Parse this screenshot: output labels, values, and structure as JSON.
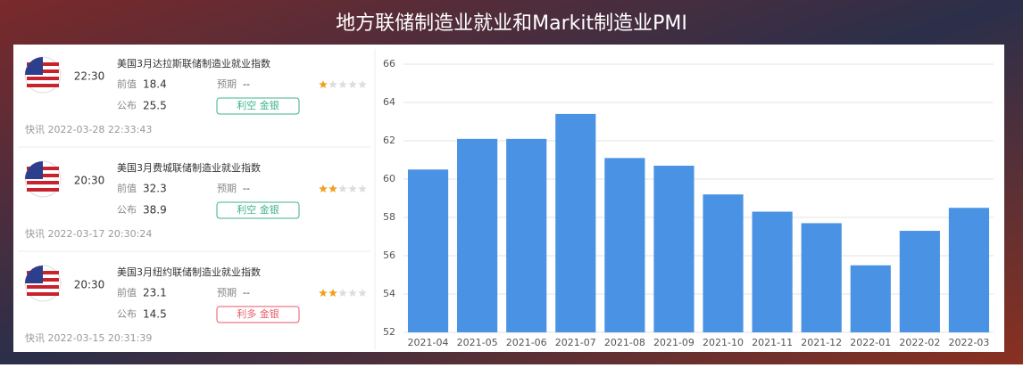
{
  "title": "地方联储制造业就业和Markit制造业PMI",
  "labels": {
    "prev": "前值",
    "forecast": "预期",
    "actual": "公布"
  },
  "news": [
    {
      "time": "22:30",
      "name": "美国3月达拉斯联储制造业就业指数",
      "prev": "18.4",
      "forecast": "--",
      "actual": "25.5",
      "stars": 1,
      "tag": "利空 金银",
      "tag_color": "#3cb38a",
      "footer": "快讯 2022-03-28 22:33:43"
    },
    {
      "time": "20:30",
      "name": "美国3月费城联储制造业就业指数",
      "prev": "32.3",
      "forecast": "--",
      "actual": "38.9",
      "stars": 2,
      "tag": "利空 金银",
      "tag_color": "#3cb38a",
      "footer": "快讯 2022-03-17 20:30:24"
    },
    {
      "time": "20:30",
      "name": "美国3月纽约联储制造业就业指数",
      "prev": "23.1",
      "forecast": "--",
      "actual": "14.5",
      "stars": 2,
      "tag": "利多 金银",
      "tag_color": "#e85a6a",
      "footer": "快讯 2022-03-15 20:31:39"
    }
  ],
  "chart_data": {
    "type": "bar",
    "categories": [
      "2021-04",
      "2021-05",
      "2021-06",
      "2021-07",
      "2021-08",
      "2021-09",
      "2021-10",
      "2021-11",
      "2021-12",
      "2022-01",
      "2022-02",
      "2022-03"
    ],
    "values": [
      60.5,
      62.1,
      62.1,
      63.4,
      61.1,
      60.7,
      59.2,
      58.3,
      57.7,
      55.5,
      57.3,
      58.5
    ],
    "color": "#4a93e4",
    "ylim": [
      52,
      66
    ],
    "yticks": [
      52,
      54,
      56,
      58,
      60,
      62,
      64,
      66
    ],
    "grid": true
  }
}
